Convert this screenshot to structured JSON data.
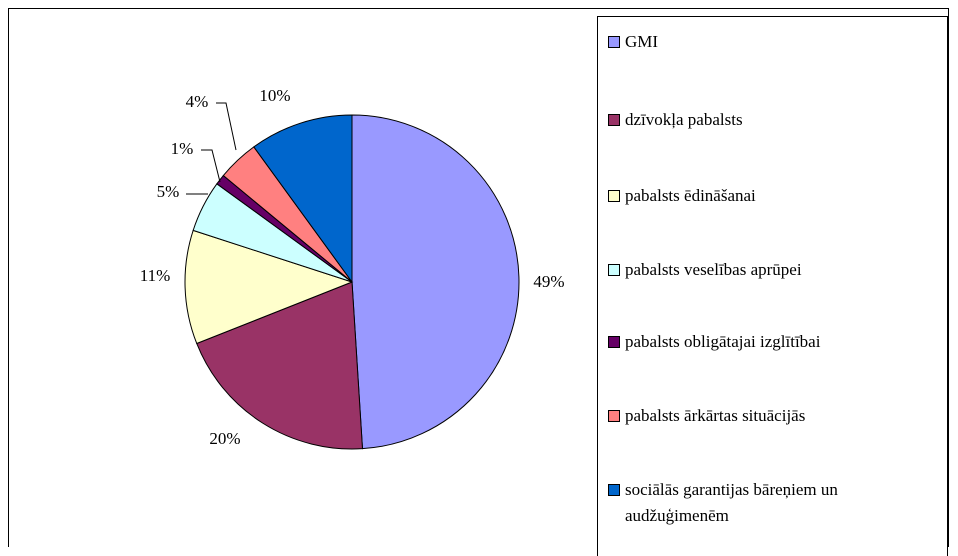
{
  "chart_data": {
    "type": "pie",
    "categories": [
      "GMI",
      "dzīvokļa pabalsts",
      "pabalsts ēdināšanai",
      "pabalsts veselības aprūpei",
      "pabalsts obligātajai izglītībai",
      "pabalsts ārkārtas situācijās",
      "sociālās garantijas bāreņiem un audžuģimenēm"
    ],
    "values": [
      49,
      20,
      11,
      5,
      1,
      4,
      10
    ],
    "value_labels": [
      "49%",
      "20%",
      "11%",
      "5%",
      "1%",
      "4%",
      "10%"
    ],
    "colors": [
      "#9999ff",
      "#993366",
      "#ffffcc",
      "#ccffff",
      "#660066",
      "#ff8080",
      "#0066cc"
    ],
    "legend": "right"
  }
}
